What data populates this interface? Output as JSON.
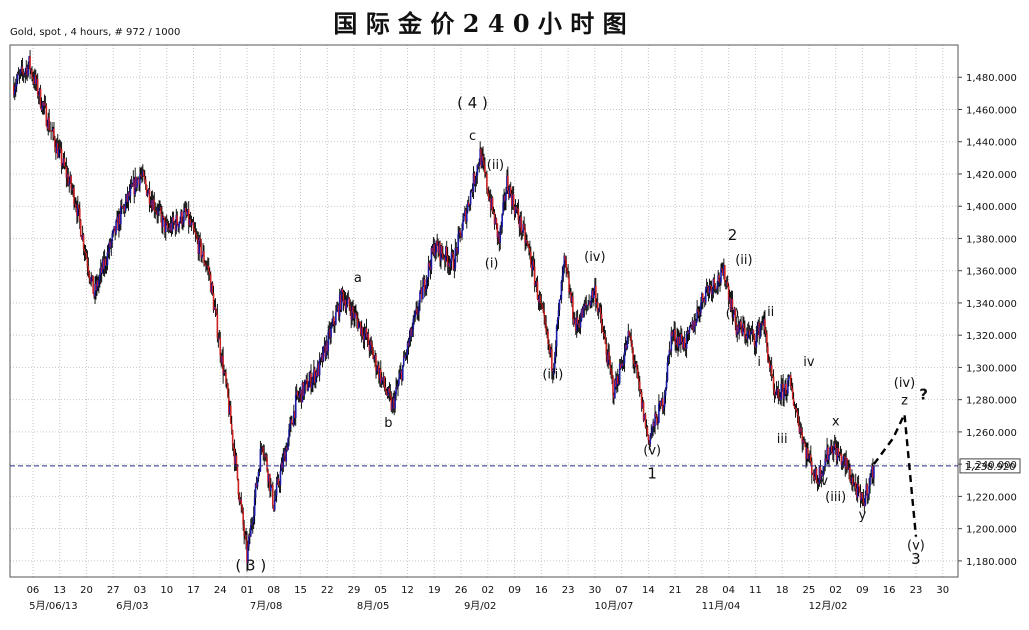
{
  "header": {
    "subtitle": "Gold, spot , 4 hours, # 972 / 1000",
    "title": "国 际 金 价 2 4 0 小 时 图"
  },
  "chart_data": {
    "type": "candlestick",
    "ylim": [
      1170,
      1500
    ],
    "y_ticks": [
      1180,
      1200,
      1220,
      1240,
      1260,
      1280,
      1300,
      1320,
      1340,
      1360,
      1380,
      1400,
      1420,
      1440,
      1460,
      1480
    ],
    "y_tick_labels": [
      "1,180.000",
      "1,200.000",
      "1,220.000",
      "1,240.000",
      "1,260.000",
      "1,280.000",
      "1,300.000",
      "1,320.000",
      "1,340.000",
      "1,360.000",
      "1,380.000",
      "1,400.000",
      "1,420.000",
      "1,440.000",
      "1,460.000",
      "1,480.000"
    ],
    "x_days": [
      0,
      7,
      14,
      21,
      28,
      35,
      42,
      49,
      56,
      63,
      70,
      77,
      84,
      91,
      98,
      105,
      112,
      119,
      126,
      133,
      140,
      147,
      154,
      161,
      168,
      175,
      182,
      189,
      196
    ],
    "x_tick_labels": [
      "06",
      "13",
      "20",
      "27",
      "03",
      "10",
      "17",
      "24",
      "01",
      "08",
      "15",
      "22",
      "29",
      "05",
      "12",
      "19",
      "26",
      "02",
      "09",
      "16",
      "23",
      "30",
      "07",
      "14",
      "21",
      "28",
      "04",
      "11",
      "18",
      "25",
      "02",
      "09",
      "16",
      "23",
      "30"
    ],
    "x_tick_days": [
      1,
      8,
      15,
      22,
      29,
      36,
      43,
      50,
      57,
      64,
      71,
      78,
      85,
      92,
      99,
      106,
      113,
      120,
      127,
      134,
      141,
      148,
      155,
      162,
      169,
      176,
      183,
      190,
      197,
      204,
      211,
      218,
      225,
      232,
      239
    ],
    "month_labels": [
      {
        "day": 0,
        "text": "5月/06/13"
      },
      {
        "day": 27,
        "text": "6月/03"
      },
      {
        "day": 62,
        "text": "7月/08"
      },
      {
        "day": 90,
        "text": "8月/05"
      },
      {
        "day": 118,
        "text": "9月/02"
      },
      {
        "day": 153,
        "text": "10月/07"
      },
      {
        "day": 181,
        "text": "11月/04"
      },
      {
        "day": 209,
        "text": "12月/02"
      }
    ],
    "x_range_days": [
      -5,
      243
    ],
    "key_points": [
      {
        "day": -4,
        "price": 1475
      },
      {
        "day": 0,
        "price": 1488
      },
      {
        "day": 6,
        "price": 1445
      },
      {
        "day": 12,
        "price": 1405
      },
      {
        "day": 17,
        "price": 1345
      },
      {
        "day": 24,
        "price": 1395
      },
      {
        "day": 29,
        "price": 1420
      },
      {
        "day": 36,
        "price": 1385
      },
      {
        "day": 41,
        "price": 1395
      },
      {
        "day": 47,
        "price": 1360
      },
      {
        "day": 52,
        "price": 1280
      },
      {
        "day": 57,
        "price": 1182
      },
      {
        "day": 61,
        "price": 1255
      },
      {
        "day": 64,
        "price": 1215
      },
      {
        "day": 70,
        "price": 1280
      },
      {
        "day": 76,
        "price": 1300
      },
      {
        "day": 82,
        "price": 1345
      },
      {
        "day": 88,
        "price": 1320
      },
      {
        "day": 95,
        "price": 1275
      },
      {
        "day": 101,
        "price": 1330
      },
      {
        "day": 106,
        "price": 1375
      },
      {
        "day": 111,
        "price": 1365
      },
      {
        "day": 118,
        "price": 1432
      },
      {
        "day": 123,
        "price": 1378
      },
      {
        "day": 125,
        "price": 1415
      },
      {
        "day": 131,
        "price": 1370
      },
      {
        "day": 137,
        "price": 1300
      },
      {
        "day": 140,
        "price": 1365
      },
      {
        "day": 143,
        "price": 1325
      },
      {
        "day": 148,
        "price": 1348
      },
      {
        "day": 153,
        "price": 1285
      },
      {
        "day": 157,
        "price": 1320
      },
      {
        "day": 162,
        "price": 1255
      },
      {
        "day": 166,
        "price": 1280
      },
      {
        "day": 168,
        "price": 1320
      },
      {
        "day": 172,
        "price": 1315
      },
      {
        "day": 177,
        "price": 1348
      },
      {
        "day": 182,
        "price": 1358
      },
      {
        "day": 185,
        "price": 1325
      },
      {
        "day": 190,
        "price": 1318
      },
      {
        "day": 192,
        "price": 1330
      },
      {
        "day": 195,
        "price": 1280
      },
      {
        "day": 199,
        "price": 1290
      },
      {
        "day": 203,
        "price": 1250
      },
      {
        "day": 206,
        "price": 1230
      },
      {
        "day": 210,
        "price": 1252
      },
      {
        "day": 214,
        "price": 1238
      },
      {
        "day": 218,
        "price": 1215
      },
      {
        "day": 221,
        "price": 1238
      }
    ],
    "reference_line": {
      "value": 1238.92,
      "label": "1,238.920"
    },
    "projection": [
      {
        "day": 221,
        "price": 1240
      },
      {
        "day": 226,
        "price": 1256
      },
      {
        "day": 229,
        "price": 1271
      },
      {
        "day": 232,
        "price": 1195
      }
    ],
    "annotations": [
      {
        "text": "( 4 )",
        "day": 116,
        "price": 1461
      },
      {
        "text": "c",
        "day": 116,
        "price": 1441
      },
      {
        "text": "(ii)",
        "day": 122,
        "price": 1423
      },
      {
        "text": "(i)",
        "day": 121,
        "price": 1362
      },
      {
        "text": "a",
        "day": 86,
        "price": 1353
      },
      {
        "text": "b",
        "day": 94,
        "price": 1263
      },
      {
        "text": "(iv)",
        "day": 148,
        "price": 1366
      },
      {
        "text": "(iii)",
        "day": 137,
        "price": 1293
      },
      {
        "text": "(v)",
        "day": 163,
        "price": 1246
      },
      {
        "text": "1",
        "day": 163,
        "price": 1231
      },
      {
        "text": "2",
        "day": 184,
        "price": 1379
      },
      {
        "text": "(ii)",
        "day": 187,
        "price": 1364
      },
      {
        "text": "(i)",
        "day": 184,
        "price": 1331
      },
      {
        "text": "ii",
        "day": 194,
        "price": 1332
      },
      {
        "text": "i",
        "day": 191,
        "price": 1301
      },
      {
        "text": "iv",
        "day": 204,
        "price": 1301
      },
      {
        "text": "iii",
        "day": 197,
        "price": 1253
      },
      {
        "text": "x",
        "day": 211,
        "price": 1264
      },
      {
        "text": "v",
        "day": 208,
        "price": 1227
      },
      {
        "text": "(iii)",
        "day": 211,
        "price": 1217
      },
      {
        "text": "y",
        "day": 218,
        "price": 1206
      },
      {
        "text": "(iv)",
        "day": 229,
        "price": 1288
      },
      {
        "text": "z",
        "day": 229,
        "price": 1277
      },
      {
        "text": "?",
        "day": 234,
        "price": 1280
      },
      {
        "text": "(v)",
        "day": 232,
        "price": 1187
      },
      {
        "text": "3",
        "day": 232,
        "price": 1178
      },
      {
        "text": "( 3 )",
        "day": 58,
        "price": 1174
      }
    ],
    "colors": {
      "candle_up": "#1a1aa8",
      "candle_down": "#cc2222",
      "wick": "#000000",
      "reference": "#2a2a8a",
      "grid": "#c8c8c8"
    }
  }
}
